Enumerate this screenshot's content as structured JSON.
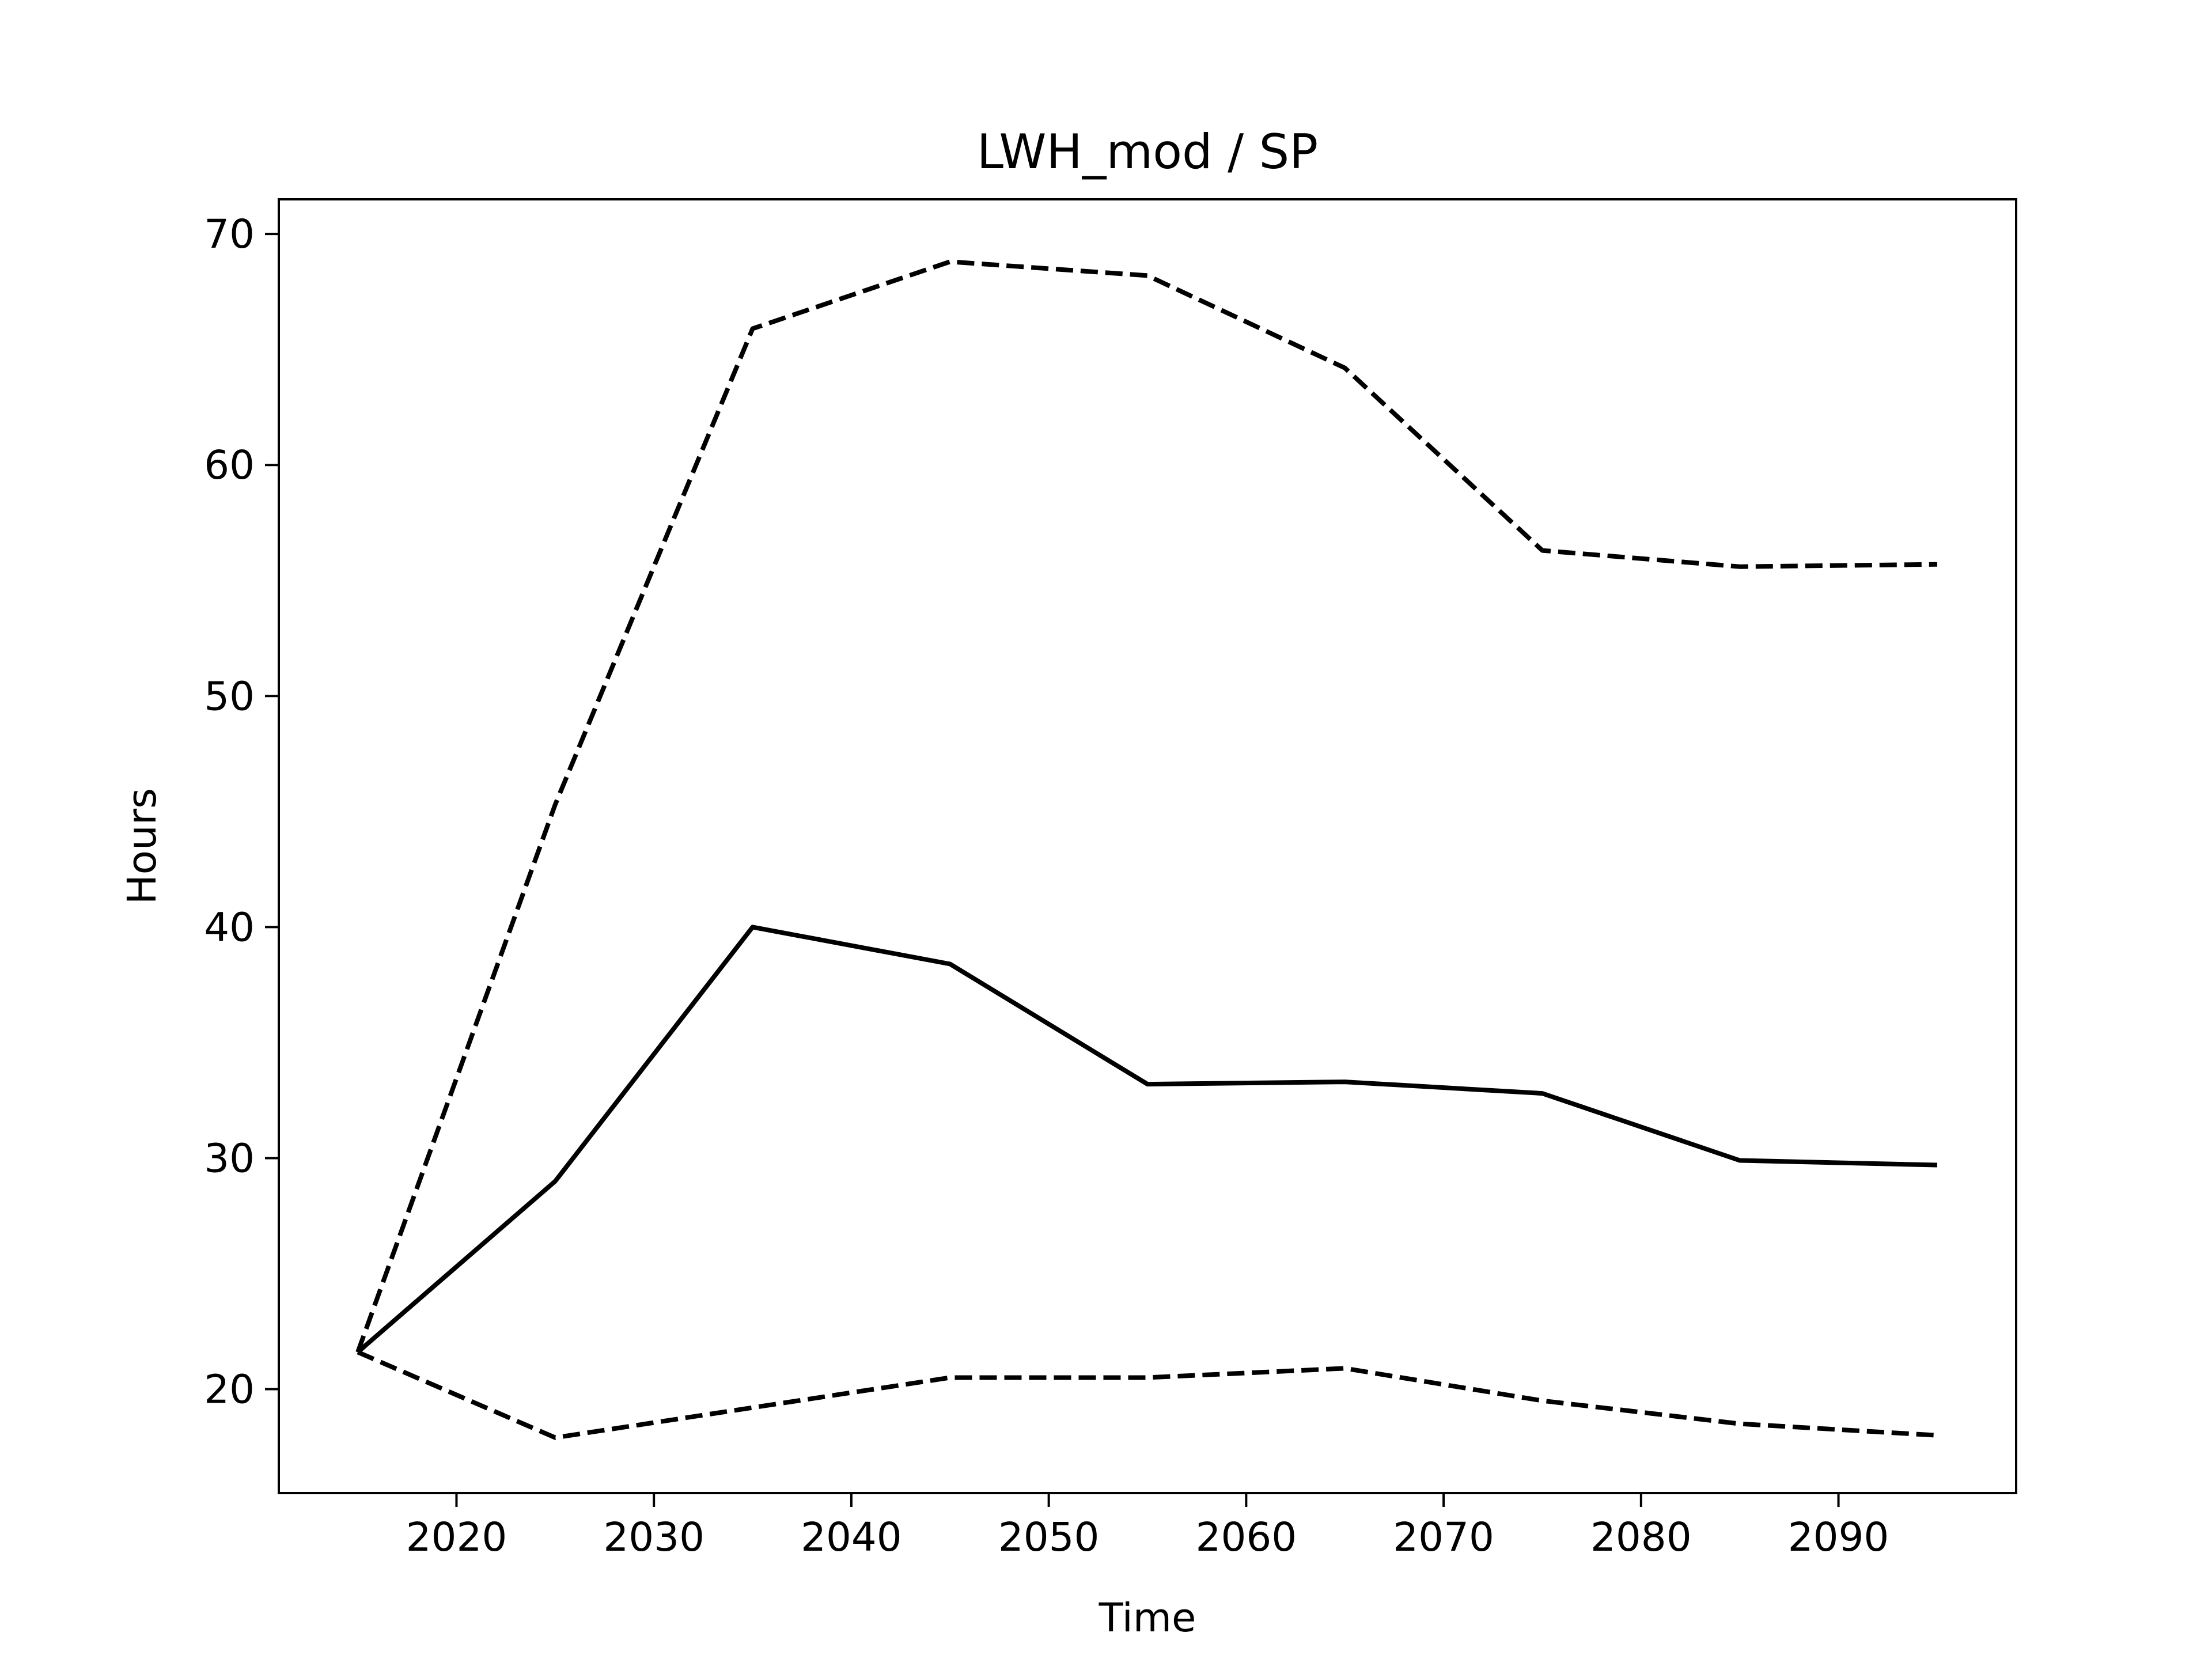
{
  "chart_data": {
    "type": "line",
    "title": "LWH_mod / SP",
    "xlabel": "Time",
    "ylabel": "Hours",
    "xlim": [
      2011,
      2099
    ],
    "ylim": [
      15.5,
      71.5
    ],
    "xticks": [
      2020,
      2030,
      2040,
      2050,
      2060,
      2070,
      2080,
      2090
    ],
    "yticks": [
      20,
      30,
      40,
      50,
      60,
      70
    ],
    "grid": false,
    "legend": "none",
    "x": [
      2015,
      2025,
      2035,
      2045,
      2055,
      2065,
      2075,
      2085,
      2095
    ],
    "series": [
      {
        "style": "solid",
        "color": "#000000",
        "values": [
          21.6,
          29.0,
          40.0,
          38.4,
          33.2,
          33.3,
          32.8,
          29.9,
          29.7
        ]
      },
      {
        "style": "dashed",
        "color": "#000000",
        "values": [
          21.6,
          45.3,
          65.9,
          68.8,
          68.2,
          64.2,
          56.3,
          55.6,
          55.7
        ]
      },
      {
        "style": "dashed",
        "color": "#000000",
        "values": [
          21.6,
          17.9,
          19.2,
          20.5,
          20.5,
          20.9,
          19.5,
          18.5,
          18.0
        ]
      }
    ]
  }
}
